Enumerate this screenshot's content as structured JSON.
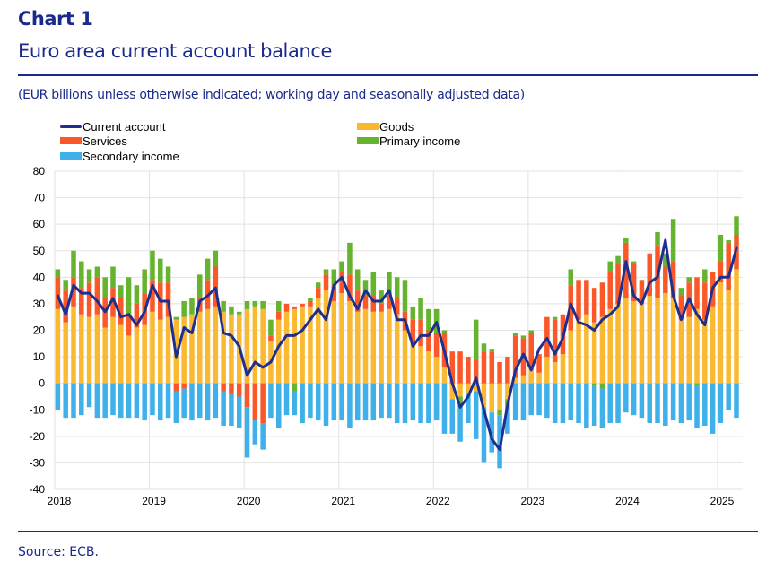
{
  "header": {
    "chart_label": "Chart 1",
    "title": "Euro area current account balance",
    "subtitle": "(EUR billions unless otherwise indicated; working day and seasonally adjusted data)"
  },
  "footer": {
    "source": "Source: ECB."
  },
  "colors": {
    "current_account": "#1f2f8f",
    "goods": "#fbb931",
    "services": "#fa5828",
    "primary_income": "#65b32e",
    "secondary_income": "#3fb0e9",
    "text_blue": "#1a2a8c",
    "grid": "#e2e2e2"
  },
  "chart_data": {
    "type": "bar",
    "stacked": true,
    "title": "Euro area current account balance",
    "xlabel": "",
    "ylabel": "EUR billions",
    "ylim": [
      -40,
      80
    ],
    "yticks": [
      80,
      70,
      60,
      50,
      40,
      30,
      20,
      10,
      0,
      -10,
      -20,
      -30,
      -40
    ],
    "xtick_labels": [
      "2018",
      "2019",
      "2020",
      "2021",
      "2022",
      "2023",
      "2024",
      "2025"
    ],
    "grid": true,
    "legend_position": "top-left",
    "legend": [
      {
        "name": "Current account",
        "kind": "line",
        "color_key": "current_account"
      },
      {
        "name": "Goods",
        "kind": "bar",
        "color_key": "goods"
      },
      {
        "name": "Services",
        "kind": "bar",
        "color_key": "services"
      },
      {
        "name": "Primary income",
        "kind": "bar",
        "color_key": "primary_income"
      },
      {
        "name": "Secondary income",
        "kind": "bar",
        "color_key": "secondary_income"
      }
    ],
    "start": "2018-01",
    "frequency": "monthly",
    "series": [
      {
        "name": "Goods",
        "type": "bar",
        "values": [
          28,
          23,
          29,
          26,
          25,
          26,
          21,
          25,
          22,
          18,
          21,
          22,
          27,
          24,
          25,
          24,
          25,
          26,
          27,
          28,
          29,
          27,
          26,
          26,
          28,
          29,
          28,
          16,
          24,
          27,
          28,
          29,
          29,
          32,
          35,
          31,
          34,
          31,
          27,
          28,
          27,
          27,
          28,
          26,
          20,
          16,
          14,
          12,
          10,
          6,
          -6,
          -5,
          -4,
          -3,
          -9,
          -11,
          -10,
          -6,
          2,
          3,
          6,
          4,
          10,
          8,
          11,
          20,
          24,
          26,
          23,
          25,
          28,
          30,
          32,
          31,
          30,
          33,
          32,
          34,
          32,
          24,
          25,
          28,
          24,
          29,
          38,
          35,
          43
        ]
      },
      {
        "name": "Services",
        "type": "bar",
        "values": [
          12,
          12,
          11,
          10,
          13,
          14,
          11,
          11,
          10,
          8,
          9,
          12,
          12,
          14,
          13,
          -3,
          -2,
          0,
          5,
          11,
          15,
          -3,
          -4,
          -5,
          -9,
          -14,
          -15,
          2,
          3,
          3,
          1,
          1,
          2,
          4,
          6,
          6,
          8,
          10,
          8,
          5,
          6,
          3,
          5,
          6,
          7,
          8,
          10,
          8,
          9,
          13,
          12,
          12,
          10,
          9,
          12,
          12,
          8,
          10,
          16,
          14,
          13,
          7,
          15,
          16,
          15,
          17,
          15,
          13,
          13,
          13,
          14,
          15,
          21,
          14,
          9,
          16,
          20,
          10,
          14,
          9,
          13,
          12,
          14,
          13,
          8,
          18,
          13
        ]
      },
      {
        "name": "Primary income",
        "type": "bar",
        "values": [
          3,
          4,
          10,
          10,
          5,
          4,
          8,
          8,
          5,
          14,
          7,
          9,
          11,
          9,
          6,
          1,
          6,
          6,
          9,
          8,
          6,
          4,
          3,
          1,
          3,
          2,
          3,
          6,
          4,
          0,
          -3,
          0,
          1,
          2,
          2,
          6,
          4,
          12,
          8,
          6,
          9,
          5,
          9,
          8,
          12,
          5,
          8,
          8,
          9,
          1,
          0,
          -3,
          0,
          15,
          3,
          1,
          -2,
          -2,
          1,
          1,
          1,
          0,
          0,
          1,
          0,
          6,
          0,
          0,
          -1,
          -2,
          4,
          3,
          2,
          1,
          0,
          0,
          5,
          5,
          16,
          3,
          2,
          -1,
          5,
          0,
          10,
          1,
          7
        ]
      },
      {
        "name": "Secondary income",
        "type": "bar",
        "values": [
          -10,
          -13,
          -13,
          -12,
          -9,
          -13,
          -13,
          -12,
          -13,
          -13,
          -13,
          -14,
          -12,
          -14,
          -13,
          -12,
          -11,
          -14,
          -13,
          -14,
          -13,
          -13,
          -12,
          -12,
          -19,
          -9,
          -10,
          -13,
          -17,
          -12,
          -9,
          -15,
          -13,
          -14,
          -16,
          -14,
          -14,
          -17,
          -14,
          -14,
          -14,
          -13,
          -13,
          -15,
          -15,
          -14,
          -15,
          -15,
          -14,
          -19,
          -13,
          -14,
          -11,
          -18,
          -21,
          -15,
          -20,
          -11,
          -14,
          -14,
          -12,
          -12,
          -13,
          -15,
          -15,
          -14,
          -15,
          -17,
          -15,
          -15,
          -15,
          -15,
          -11,
          -12,
          -13,
          -15,
          -15,
          -16,
          -14,
          -15,
          -14,
          -16,
          -16,
          -19,
          -15,
          -10,
          -13
        ]
      },
      {
        "name": "Current account",
        "type": "line",
        "values": [
          33,
          26,
          37,
          34,
          34,
          31,
          27,
          32,
          25,
          26,
          22,
          27,
          37,
          31,
          31,
          10,
          21,
          19,
          31,
          33,
          36,
          19,
          18,
          14,
          3,
          8,
          6,
          8,
          14,
          18,
          18,
          20,
          24,
          28,
          24,
          37,
          40,
          33,
          28,
          35,
          31,
          31,
          35,
          24,
          24,
          14,
          18,
          18,
          23,
          12,
          0,
          -9,
          -5,
          2,
          -10,
          -21,
          -25,
          -8,
          5,
          11,
          5,
          13,
          17,
          11,
          17,
          30,
          23,
          22,
          20,
          24,
          26,
          29,
          46,
          33,
          30,
          38,
          40,
          54,
          33,
          24,
          32,
          26,
          22,
          36,
          40,
          40,
          51
        ]
      }
    ]
  }
}
